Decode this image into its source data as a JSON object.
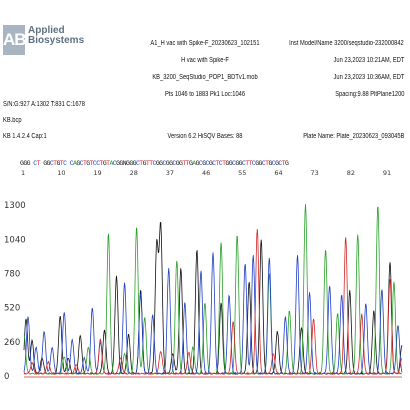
{
  "logo": {
    "mark": "AB",
    "line1": "Applied",
    "line2": "Biosystems"
  },
  "header": {
    "left": [
      "S/N:G:927 A:1302 T:831 C:1678",
      "KB.bcp",
      "KB 1.4.2.4     Cap:1"
    ],
    "center": [
      "A1_H vac with Spike-F_20230623_102151",
      "H vac with Spike-F",
      "KB_3200_SeqStudio_POP1_BDTv1.mob",
      "Pts 1046 to 1883 Pk1 Loc:1046",
      "Version 6.2     HiSQV Bases: 88"
    ],
    "right": [
      "Inst Model/Name 3200/seqstudio-232000842",
      "Jun 23,2023 10:21AM, EDT",
      "Jun 23,2023 10:36AM, EDT",
      "Spacing:9.88  PltPlane1200",
      "Plate Name: Plate_20230623_093045B"
    ]
  },
  "base_calls": "GGG CT GGCTGTC CAGCTGTCCTGTACGGNGGGCTGTTCGGCGGCGGTTGAGCGCGCTCTGGCGGCTTCGGCTGCGCTG",
  "colors": {
    "A": "#2ca02c",
    "C": "#1f3fc4",
    "G": "#111111",
    "T": "#d62728"
  },
  "chart_data": {
    "type": "line",
    "positions": [
      1,
      10,
      19,
      28,
      37,
      46,
      55,
      64,
      73,
      82,
      91
    ],
    "y_ticks": [
      0,
      260,
      520,
      780,
      1040,
      1300
    ],
    "ylim": [
      0,
      1400
    ],
    "xlim": [
      1,
      95
    ],
    "grid": false,
    "legend": "none",
    "series": [
      {
        "color": "#111111",
        "points": [
          [
            1.5,
            420
          ],
          [
            3,
            250
          ],
          [
            5.5,
            120
          ],
          [
            10,
            440
          ],
          [
            12,
            120
          ],
          [
            15,
            290
          ],
          [
            21,
            330
          ],
          [
            24,
            740
          ],
          [
            27,
            300
          ],
          [
            30,
            640
          ],
          [
            34,
            980
          ],
          [
            35,
            1120
          ],
          [
            38,
            150
          ],
          [
            40,
            800
          ],
          [
            44,
            940
          ],
          [
            50,
            540
          ],
          [
            57,
            700
          ],
          [
            60,
            1020
          ],
          [
            64,
            320
          ],
          [
            70,
            350
          ],
          [
            82,
            630
          ],
          [
            88,
            480
          ],
          [
            92,
            850
          ],
          [
            95,
            220
          ]
        ]
      },
      {
        "color": "#2ca02c",
        "points": [
          [
            1,
            300
          ],
          [
            11,
            130
          ],
          [
            17,
            200
          ],
          [
            22,
            1070
          ],
          [
            26,
            150
          ],
          [
            29,
            1120
          ],
          [
            31,
            430
          ],
          [
            39,
            860
          ],
          [
            43,
            200
          ],
          [
            46,
            540
          ],
          [
            50,
            1000
          ],
          [
            54,
            1060
          ],
          [
            62,
            760
          ],
          [
            67,
            480
          ],
          [
            71,
            1290
          ],
          [
            76,
            950
          ],
          [
            79,
            460
          ],
          [
            84,
            1060
          ],
          [
            89,
            1280
          ],
          [
            93,
            700
          ]
        ]
      },
      {
        "color": "#1f3fc4",
        "points": [
          [
            2,
            430
          ],
          [
            4,
            200
          ],
          [
            6,
            320
          ],
          [
            8,
            200
          ],
          [
            11,
            470
          ],
          [
            13,
            260
          ],
          [
            16,
            120
          ],
          [
            18,
            500
          ],
          [
            20,
            240
          ],
          [
            26,
            690
          ],
          [
            30,
            610
          ],
          [
            33,
            450
          ],
          [
            37,
            800
          ],
          [
            41,
            540
          ],
          [
            45,
            780
          ],
          [
            48,
            920
          ],
          [
            52,
            600
          ],
          [
            56,
            840
          ],
          [
            58,
            900
          ],
          [
            62,
            880
          ],
          [
            66,
            430
          ],
          [
            69,
            900
          ],
          [
            72,
            620
          ],
          [
            77,
            670
          ],
          [
            80,
            600
          ],
          [
            86,
            530
          ],
          [
            90,
            640
          ],
          [
            94,
            370
          ]
        ]
      },
      {
        "color": "#d62728",
        "points": [
          [
            3,
            80
          ],
          [
            7,
            90
          ],
          [
            14,
            70
          ],
          [
            20,
            260
          ],
          [
            25,
            120
          ],
          [
            35,
            170
          ],
          [
            42,
            160
          ],
          [
            53,
            400
          ],
          [
            59,
            1100
          ],
          [
            63,
            150
          ],
          [
            73,
            420
          ],
          [
            81,
            1040
          ],
          [
            85,
            450
          ],
          [
            92,
            720
          ],
          [
            95,
            120
          ]
        ]
      }
    ]
  }
}
